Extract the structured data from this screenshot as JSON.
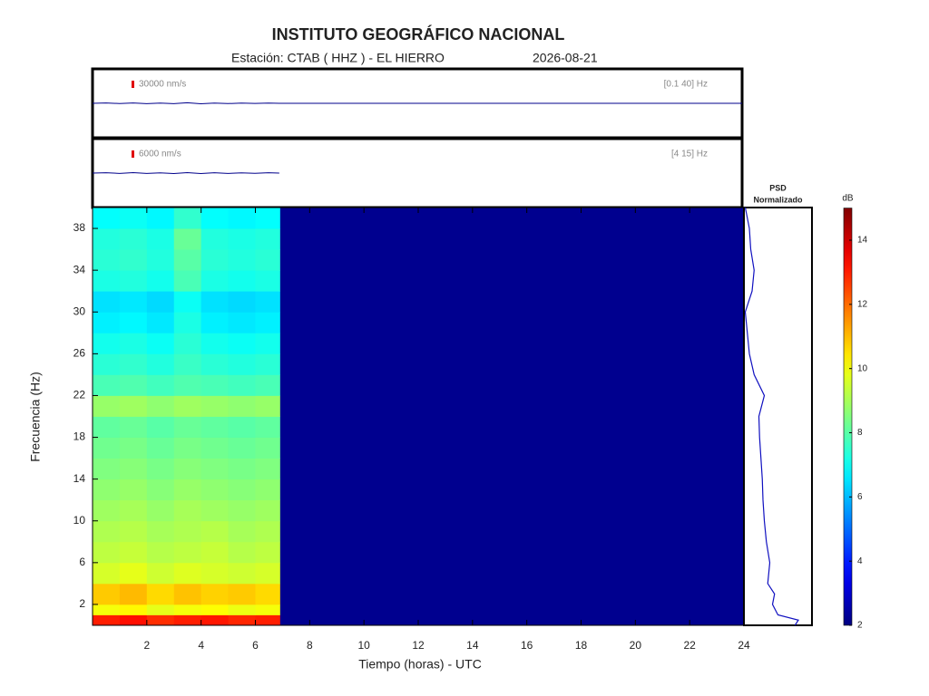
{
  "title": "INSTITUTO GEOGRÁFICO NACIONAL",
  "subtitle": "Estación:  CTAB ( HHZ ) - EL HIERRO",
  "date": "2026-08-21",
  "chart_data": [
    {
      "type": "seismogram",
      "scale": 30000,
      "scale_label": "30000 nm/s",
      "band_label": "[0.1 40] Hz",
      "color": "#00008b",
      "scale_color": "#e00000",
      "x": [
        0,
        0.5,
        1,
        1.5,
        2,
        2.5,
        3,
        3.5,
        4,
        4.5,
        5,
        5.5,
        6,
        6.5,
        6.9,
        24
      ],
      "values": [
        0,
        1200,
        -900,
        1500,
        -1300,
        800,
        -1600,
        2200,
        -1800,
        1000,
        -1100,
        900,
        -700,
        1100,
        0,
        0
      ],
      "xlim": [
        0,
        24
      ],
      "ylim": [
        -142500,
        142500
      ]
    },
    {
      "type": "seismogram",
      "scale": 6000,
      "scale_label": "6000 nm/s",
      "band_label": "[4 15] Hz",
      "color": "#00008b",
      "scale_color": "#e00000",
      "x": [
        0,
        0.5,
        1,
        1.5,
        2,
        2.5,
        3,
        3.5,
        4,
        4.5,
        5,
        5.5,
        6,
        6.5,
        6.9
      ],
      "values": [
        0,
        300,
        -250,
        350,
        -300,
        200,
        -350,
        400,
        -380,
        250,
        -280,
        220,
        -200,
        260,
        0
      ],
      "xlim": [
        0,
        24
      ],
      "ylim": [
        -28500,
        28500
      ]
    },
    {
      "type": "heatmap",
      "xlabel": "Tiempo (horas) - UTC",
      "ylabel": "Frecuencia  (Hz)",
      "x": [
        0,
        1,
        2,
        3,
        4,
        5,
        6,
        6.9
      ],
      "y": [
        0,
        1,
        2,
        4,
        6,
        8,
        10,
        12,
        14,
        16,
        18,
        20,
        22,
        24,
        26,
        28,
        30,
        32,
        34,
        36,
        38,
        40
      ],
      "z": [
        [
          13,
          13.2,
          12.8,
          13,
          13.1,
          12.9,
          13
        ],
        [
          10,
          10.2,
          9.8,
          10,
          10.1,
          9.9,
          10
        ],
        [
          10.8,
          11,
          10.6,
          10.9,
          10.7,
          10.8,
          10.6
        ],
        [
          9.6,
          9.8,
          9.5,
          9.7,
          9.6,
          9.5,
          9.6
        ],
        [
          9.3,
          9.4,
          9.2,
          9.3,
          9.4,
          9.2,
          9.3
        ],
        [
          9.1,
          9.2,
          9,
          9.1,
          9.2,
          9,
          9.1
        ],
        [
          8.9,
          9,
          8.8,
          9,
          8.9,
          8.8,
          8.9
        ],
        [
          8.7,
          8.8,
          8.6,
          8.8,
          8.7,
          8.6,
          8.7
        ],
        [
          8.5,
          8.6,
          8.4,
          8.6,
          8.5,
          8.4,
          8.5
        ],
        [
          8.3,
          8.4,
          8.2,
          8.4,
          8.3,
          8.2,
          8.3
        ],
        [
          8.1,
          8.2,
          8,
          8.2,
          8.1,
          8,
          8.1
        ],
        [
          8.8,
          8.9,
          8.7,
          8.9,
          8.8,
          8.7,
          8.8
        ],
        [
          7.8,
          7.9,
          7.7,
          7.9,
          7.8,
          7.7,
          7.8
        ],
        [
          7.4,
          7.5,
          7.3,
          7.6,
          7.4,
          7.3,
          7.4
        ],
        [
          7.1,
          7.2,
          7,
          7.4,
          7.1,
          7,
          7.1
        ],
        [
          6.7,
          6.8,
          6.6,
          7.2,
          6.7,
          6.6,
          6.7
        ],
        [
          6.5,
          6.6,
          6.4,
          7,
          6.5,
          6.4,
          6.5
        ],
        [
          7.2,
          7.3,
          7.1,
          7.8,
          7.2,
          7.1,
          7.2
        ],
        [
          7.4,
          7.5,
          7.3,
          8,
          7.4,
          7.3,
          7.4
        ],
        [
          7.3,
          7.4,
          7.2,
          8.2,
          7.3,
          7.2,
          7.3
        ],
        [
          6.9,
          7,
          6.8,
          7.5,
          6.9,
          6.8,
          6.9
        ]
      ],
      "clim": [
        2,
        15
      ],
      "colormap": "jet",
      "background": "#00008f",
      "xlim": [
        0,
        24
      ],
      "ylim": [
        0,
        40
      ],
      "xticks": [
        2,
        4,
        6,
        8,
        10,
        12,
        14,
        16,
        18,
        20,
        22,
        24
      ],
      "yticks": [
        2,
        6,
        10,
        14,
        18,
        22,
        26,
        30,
        34,
        38
      ]
    },
    {
      "type": "psd",
      "title_lines": [
        "PSD",
        "Normalizado"
      ],
      "color": "#1010c0",
      "y": [
        0,
        0.5,
        1,
        2,
        3,
        4,
        6,
        8,
        10,
        12,
        14,
        16,
        18,
        20,
        22,
        24,
        26,
        28,
        30,
        32,
        34,
        36,
        38,
        40
      ],
      "values": [
        0.75,
        0.8,
        0.5,
        0.42,
        0.45,
        0.35,
        0.38,
        0.33,
        0.3,
        0.28,
        0.27,
        0.25,
        0.23,
        0.22,
        0.3,
        0.15,
        0.08,
        0.05,
        0.02,
        0.12,
        0.15,
        0.1,
        0.08,
        0.02
      ],
      "xlim": [
        0,
        1
      ],
      "ylim": [
        0,
        40
      ]
    },
    {
      "type": "colorbar",
      "label": "dB",
      "colormap": "jet",
      "ylim": [
        2,
        15
      ],
      "yticks": [
        2,
        4,
        6,
        8,
        10,
        12,
        14
      ]
    }
  ]
}
